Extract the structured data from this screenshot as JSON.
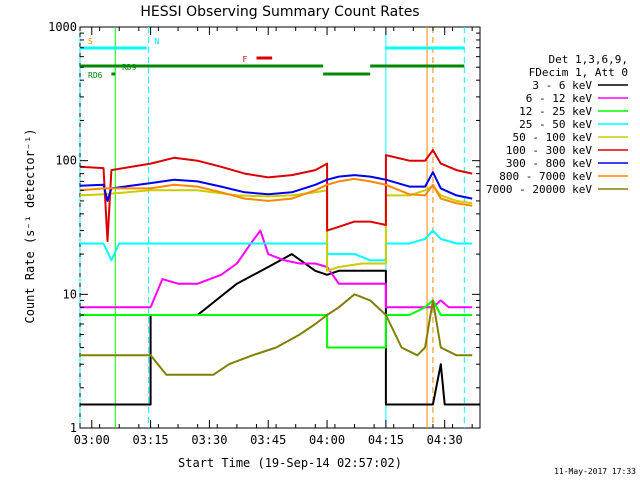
{
  "chart_data": {
    "type": "line",
    "title": "HESSI Observing Summary Count Rates",
    "ylabel": "Count Rate (s⁻¹ detector⁻¹)",
    "xlabel": "Start Time (19-Sep-14 02:57:02)",
    "y_scale": "log",
    "ylim": [
      1,
      1000
    ],
    "xlim_minutes_after_0257": [
      0,
      102
    ],
    "y_ticks": [
      "1",
      "10",
      "100",
      "1000"
    ],
    "x_ticks": [
      {
        "label": "03:00",
        "t": 3
      },
      {
        "label": "03:15",
        "t": 18
      },
      {
        "label": "03:30",
        "t": 33
      },
      {
        "label": "03:45",
        "t": 48
      },
      {
        "label": "04:00",
        "t": 63
      },
      {
        "label": "04:15",
        "t": 78
      },
      {
        "label": "04:30",
        "t": 93
      }
    ],
    "legend": {
      "header": [
        "Det 1,3,6,9,",
        "FDecim 1, Att 0"
      ],
      "entries": [
        {
          "label": "3 - 6 keV",
          "color": "#000000"
        },
        {
          "label": "6 - 12 keV",
          "color": "#ff00ff"
        },
        {
          "label": "12 - 25 keV",
          "color": "#00ff00"
        },
        {
          "label": "25 - 50 keV",
          "color": "#00ffff"
        },
        {
          "label": "50 - 100 keV",
          "color": "#cccc00"
        },
        {
          "label": "100 - 300 keV",
          "color": "#dd0000"
        },
        {
          "label": "300 - 800 keV",
          "color": "#0000ee"
        },
        {
          "label": "800 - 7000 keV",
          "color": "#ff8800"
        },
        {
          "label": "7000 - 20000 keV",
          "color": "#808000"
        }
      ]
    },
    "series": [
      {
        "name": "3 - 6 keV",
        "color": "#000000",
        "points": [
          [
            0,
            1.5
          ],
          [
            18,
            1.5
          ],
          [
            18,
            7
          ],
          [
            30,
            7
          ],
          [
            40,
            12
          ],
          [
            48,
            16
          ],
          [
            54,
            20
          ],
          [
            60,
            15
          ],
          [
            63,
            14
          ],
          [
            66,
            15
          ],
          [
            72,
            15
          ],
          [
            78,
            15
          ],
          [
            78,
            1.5
          ],
          [
            90,
            1.5
          ],
          [
            92,
            3
          ],
          [
            93,
            1.5
          ],
          [
            102,
            1.5
          ]
        ]
      },
      {
        "name": "6 - 12 keV",
        "color": "#ff00ff",
        "points": [
          [
            0,
            8
          ],
          [
            3,
            8
          ],
          [
            10,
            8
          ],
          [
            18,
            8
          ],
          [
            21,
            13
          ],
          [
            25,
            12
          ],
          [
            30,
            12
          ],
          [
            36,
            14
          ],
          [
            40,
            17
          ],
          [
            44,
            25
          ],
          [
            46,
            30
          ],
          [
            48,
            20
          ],
          [
            52,
            18
          ],
          [
            56,
            17
          ],
          [
            60,
            17
          ],
          [
            63,
            16
          ],
          [
            66,
            12
          ],
          [
            72,
            12
          ],
          [
            78,
            12
          ],
          [
            78,
            8
          ],
          [
            86,
            8
          ],
          [
            90,
            8
          ],
          [
            92,
            9
          ],
          [
            94,
            8
          ],
          [
            100,
            8
          ]
        ]
      },
      {
        "name": "12 - 25 keV",
        "color": "#00ff00",
        "points": [
          [
            0,
            7
          ],
          [
            6,
            7
          ],
          [
            10,
            7
          ],
          [
            18,
            7
          ],
          [
            24,
            7
          ],
          [
            30,
            7
          ],
          [
            36,
            7
          ],
          [
            42,
            7
          ],
          [
            48,
            7
          ],
          [
            54,
            7
          ],
          [
            60,
            7
          ],
          [
            63,
            7
          ],
          [
            63,
            4
          ],
          [
            66,
            4
          ],
          [
            72,
            4
          ],
          [
            78,
            4
          ],
          [
            78,
            7
          ],
          [
            84,
            7
          ],
          [
            88,
            8
          ],
          [
            90,
            9
          ],
          [
            92,
            7
          ],
          [
            96,
            7
          ],
          [
            100,
            7
          ]
        ]
      },
      {
        "name": "25 - 50 keV",
        "color": "#00ffff",
        "points": [
          [
            0,
            24
          ],
          [
            6,
            24
          ],
          [
            8,
            18
          ],
          [
            10,
            24
          ],
          [
            18,
            24
          ],
          [
            24,
            24
          ],
          [
            30,
            24
          ],
          [
            36,
            24
          ],
          [
            42,
            24
          ],
          [
            48,
            24
          ],
          [
            54,
            24
          ],
          [
            60,
            24
          ],
          [
            63,
            24
          ],
          [
            63,
            20
          ],
          [
            66,
            20
          ],
          [
            70,
            20
          ],
          [
            74,
            18
          ],
          [
            78,
            18
          ],
          [
            78,
            24
          ],
          [
            84,
            24
          ],
          [
            88,
            26
          ],
          [
            90,
            30
          ],
          [
            92,
            26
          ],
          [
            96,
            24
          ],
          [
            100,
            24
          ]
        ]
      },
      {
        "name": "50 - 100 keV",
        "color": "#cccc00",
        "points": [
          [
            0,
            55
          ],
          [
            6,
            56
          ],
          [
            18,
            60
          ],
          [
            30,
            60
          ],
          [
            40,
            55
          ],
          [
            48,
            54
          ],
          [
            54,
            55
          ],
          [
            60,
            58
          ],
          [
            63,
            60
          ],
          [
            63,
            15
          ],
          [
            66,
            16
          ],
          [
            72,
            17
          ],
          [
            78,
            17
          ],
          [
            78,
            55
          ],
          [
            84,
            55
          ],
          [
            88,
            60
          ],
          [
            90,
            65
          ],
          [
            92,
            55
          ],
          [
            96,
            50
          ],
          [
            100,
            48
          ]
        ]
      },
      {
        "name": "100 - 300 keV",
        "color": "#dd0000",
        "points": [
          [
            0,
            90
          ],
          [
            6,
            88
          ],
          [
            7,
            25
          ],
          [
            8,
            85
          ],
          [
            18,
            95
          ],
          [
            24,
            105
          ],
          [
            30,
            100
          ],
          [
            36,
            90
          ],
          [
            42,
            80
          ],
          [
            48,
            75
          ],
          [
            54,
            78
          ],
          [
            60,
            85
          ],
          [
            63,
            95
          ],
          [
            63,
            30
          ],
          [
            66,
            32
          ],
          [
            70,
            35
          ],
          [
            74,
            35
          ],
          [
            78,
            33
          ],
          [
            78,
            110
          ],
          [
            84,
            100
          ],
          [
            88,
            100
          ],
          [
            90,
            120
          ],
          [
            92,
            95
          ],
          [
            96,
            85
          ],
          [
            100,
            80
          ]
        ]
      },
      {
        "name": "300 - 800 keV",
        "color": "#0000ee",
        "points": [
          [
            0,
            65
          ],
          [
            6,
            66
          ],
          [
            7,
            50
          ],
          [
            8,
            62
          ],
          [
            18,
            68
          ],
          [
            24,
            72
          ],
          [
            30,
            70
          ],
          [
            36,
            64
          ],
          [
            42,
            58
          ],
          [
            48,
            56
          ],
          [
            54,
            58
          ],
          [
            60,
            66
          ],
          [
            63,
            72
          ],
          [
            66,
            76
          ],
          [
            70,
            78
          ],
          [
            74,
            76
          ],
          [
            78,
            72
          ],
          [
            84,
            64
          ],
          [
            88,
            64
          ],
          [
            90,
            82
          ],
          [
            92,
            62
          ],
          [
            96,
            55
          ],
          [
            100,
            52
          ]
        ]
      },
      {
        "name": "800 - 7000 keV",
        "color": "#ff8800",
        "points": [
          [
            0,
            60
          ],
          [
            6,
            62
          ],
          [
            18,
            62
          ],
          [
            24,
            66
          ],
          [
            30,
            64
          ],
          [
            36,
            58
          ],
          [
            42,
            52
          ],
          [
            48,
            50
          ],
          [
            54,
            52
          ],
          [
            60,
            60
          ],
          [
            63,
            66
          ],
          [
            66,
            70
          ],
          [
            70,
            73
          ],
          [
            74,
            70
          ],
          [
            78,
            66
          ],
          [
            84,
            56
          ],
          [
            88,
            55
          ],
          [
            90,
            66
          ],
          [
            92,
            52
          ],
          [
            96,
            48
          ],
          [
            100,
            46
          ]
        ]
      },
      {
        "name": "7000 - 20000 keV",
        "color": "#808000",
        "points": [
          [
            0,
            3.5
          ],
          [
            6,
            3.5
          ],
          [
            12,
            3.5
          ],
          [
            18,
            3.5
          ],
          [
            22,
            2.5
          ],
          [
            28,
            2.5
          ],
          [
            34,
            2.5
          ],
          [
            38,
            3
          ],
          [
            44,
            3.5
          ],
          [
            50,
            4
          ],
          [
            56,
            5
          ],
          [
            60,
            6
          ],
          [
            63,
            7
          ],
          [
            66,
            8
          ],
          [
            70,
            10
          ],
          [
            74,
            9
          ],
          [
            78,
            7
          ],
          [
            82,
            4
          ],
          [
            86,
            3.5
          ],
          [
            88,
            4
          ],
          [
            90,
            9
          ],
          [
            92,
            4
          ],
          [
            96,
            3.5
          ],
          [
            100,
            3.5
          ]
        ]
      }
    ],
    "vertical_markers": [
      {
        "t": 0,
        "color": "#00ffff",
        "style": "dashed"
      },
      {
        "t": 9,
        "color": "#00ff00",
        "style": "solid"
      },
      {
        "t": 17.5,
        "color": "#00ffff",
        "style": "dashed"
      },
      {
        "t": 78,
        "color": "#00ffff",
        "style": "solid"
      },
      {
        "t": 88.5,
        "color": "#ff8800",
        "style": "solid"
      },
      {
        "t": 90,
        "color": "#ff8800",
        "style": "dashed"
      },
      {
        "t": 98,
        "color": "#00ffff",
        "style": "dashed"
      }
    ],
    "flag_bars": [
      {
        "label": "S",
        "label_color": "#ff8800",
        "color": "#00ffff",
        "t0": 0,
        "t1": 17,
        "row": "top"
      },
      {
        "label": "N",
        "label_color": "#00ffff",
        "color": "#00ffff",
        "t0": 78,
        "t1": 98,
        "row": "top"
      },
      {
        "label": "F",
        "label_color": "#dd0000",
        "color": "#dd0000",
        "t0": 45,
        "t1": 49,
        "row": "flare"
      },
      {
        "label": "RD9",
        "label_color": "#008800",
        "color": "#008800",
        "t0": 0,
        "t1": 62,
        "row": "mid"
      },
      {
        "label": "",
        "label_color": "#008800",
        "color": "#008800",
        "t0": 74,
        "t1": 98,
        "row": "mid"
      },
      {
        "label": "",
        "label_color": "#008800",
        "color": "#008800",
        "t0": 62,
        "t1": 74,
        "row": "low"
      },
      {
        "label": "RD6",
        "label_color": "#008800",
        "color": "#008800",
        "t0": 8,
        "t1": 9,
        "row": "low"
      }
    ],
    "orange_tick_label": "",
    "timestamp": "11-May-2017 17:33"
  }
}
